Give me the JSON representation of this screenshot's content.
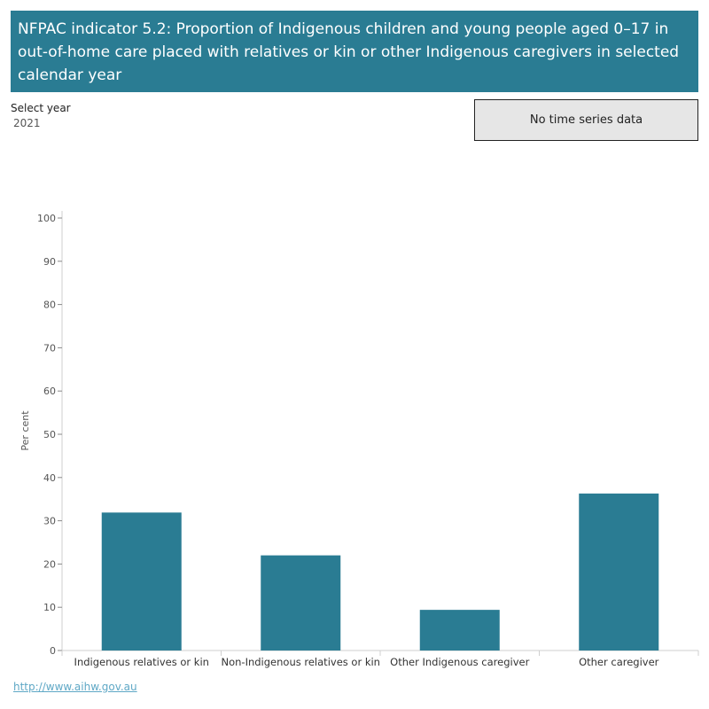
{
  "header": {
    "title": "NFPAC indicator 5.2: Proportion of Indigenous children and young people aged 0–17 in out-of-home care placed with relatives or kin or other Indigenous caregivers in selected calendar year"
  },
  "filter": {
    "label": "Select year",
    "value": "2021"
  },
  "time_series_button": {
    "label": "No time series data"
  },
  "chart_data": {
    "type": "bar",
    "categories": [
      "Indigenous relatives or kin",
      "Non-Indigenous relatives or kin",
      "Other Indigenous caregiver",
      "Other caregiver"
    ],
    "values": [
      31.9,
      22.0,
      9.4,
      36.3
    ],
    "ylabel": "Per cent",
    "ylim": [
      0,
      100
    ],
    "yticks": [
      0,
      10,
      20,
      30,
      40,
      50,
      60,
      70,
      80,
      90,
      100
    ],
    "grid": false,
    "bar_color": "#2a7c93"
  },
  "footer": {
    "link_text": "http://www.aihw.gov.au"
  }
}
